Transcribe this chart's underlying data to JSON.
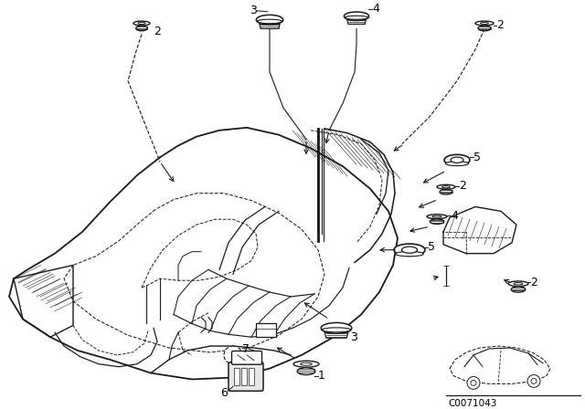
{
  "bg_color": "#ffffff",
  "fig_width": 6.4,
  "fig_height": 4.48,
  "watermark": "C0071043",
  "lc": "#1a1a1a"
}
